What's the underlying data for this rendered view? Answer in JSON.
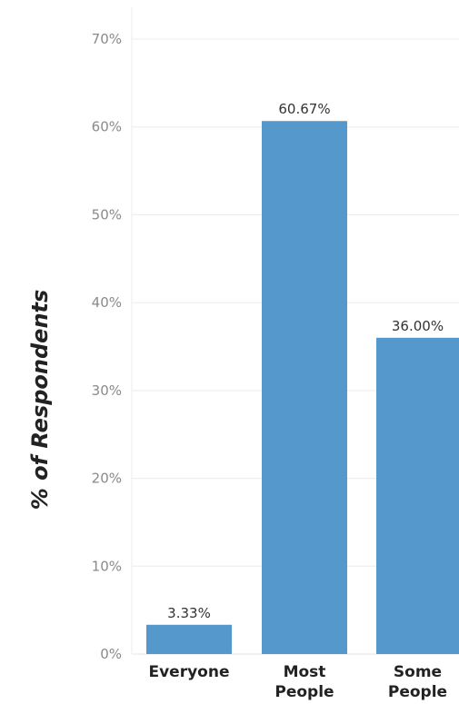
{
  "chart_data": {
    "type": "bar",
    "categories": [
      [
        "Everyone"
      ],
      [
        "Most",
        "People"
      ],
      [
        "Some",
        "People"
      ]
    ],
    "values": [
      3.33,
      60.67,
      36.0
    ],
    "data_labels": [
      "3.33%",
      "60.67%",
      "36.00%"
    ],
    "ylabel": "% of Respondents",
    "xlabel": "",
    "ylim": [
      0,
      70
    ],
    "yticks": [
      0,
      10,
      20,
      30,
      40,
      50,
      60,
      70
    ],
    "ytick_labels": [
      "0%",
      "10%",
      "20%",
      "30%",
      "40%",
      "50%",
      "60%",
      "70%"
    ],
    "grid": true,
    "legend": "none",
    "bar_color": "#5599cc"
  }
}
